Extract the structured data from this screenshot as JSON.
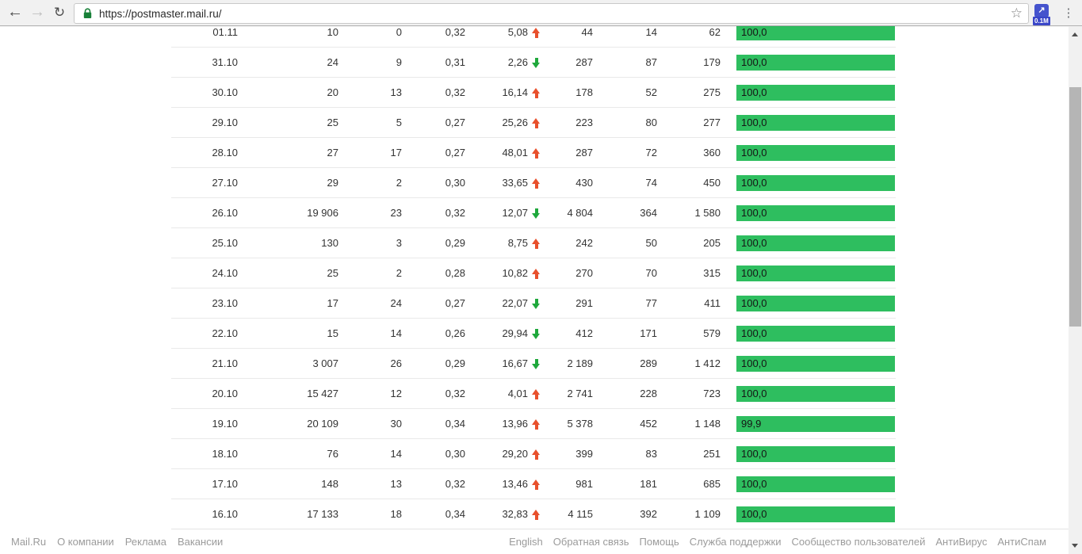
{
  "browser": {
    "url": "https://postmaster.mail.ru/",
    "extension_badge": "0.1M",
    "back_glyph": "←",
    "forward_glyph": "→",
    "reload_glyph": "↻",
    "star_glyph": "☆",
    "extension_glyph": "↗",
    "menu_glyph": "⋮"
  },
  "colors": {
    "bar_green": "#2ebe5f",
    "arrow_up_red": "#e8502c",
    "arrow_down_green": "#1fa83c",
    "lock_green": "#188038"
  },
  "table": {
    "rows": [
      {
        "date": "01.11",
        "v1": "10",
        "v2": "0",
        "v3": "0,32",
        "v4": "5,08",
        "trend": "up",
        "v5": "44",
        "v6": "14",
        "v7": "62",
        "bar": "100,0",
        "bar_pct": 100.0
      },
      {
        "date": "31.10",
        "v1": "24",
        "v2": "9",
        "v3": "0,31",
        "v4": "2,26",
        "trend": "down",
        "v5": "287",
        "v6": "87",
        "v7": "179",
        "bar": "100,0",
        "bar_pct": 100.0
      },
      {
        "date": "30.10",
        "v1": "20",
        "v2": "13",
        "v3": "0,32",
        "v4": "16,14",
        "trend": "up",
        "v5": "178",
        "v6": "52",
        "v7": "275",
        "bar": "100,0",
        "bar_pct": 100.0
      },
      {
        "date": "29.10",
        "v1": "25",
        "v2": "5",
        "v3": "0,27",
        "v4": "25,26",
        "trend": "up",
        "v5": "223",
        "v6": "80",
        "v7": "277",
        "bar": "100,0",
        "bar_pct": 100.0
      },
      {
        "date": "28.10",
        "v1": "27",
        "v2": "17",
        "v3": "0,27",
        "v4": "48,01",
        "trend": "up",
        "v5": "287",
        "v6": "72",
        "v7": "360",
        "bar": "100,0",
        "bar_pct": 100.0
      },
      {
        "date": "27.10",
        "v1": "29",
        "v2": "2",
        "v3": "0,30",
        "v4": "33,65",
        "trend": "up",
        "v5": "430",
        "v6": "74",
        "v7": "450",
        "bar": "100,0",
        "bar_pct": 100.0
      },
      {
        "date": "26.10",
        "v1": "19 906",
        "v2": "23",
        "v3": "0,32",
        "v4": "12,07",
        "trend": "down",
        "v5": "4 804",
        "v6": "364",
        "v7": "1 580",
        "bar": "100,0",
        "bar_pct": 100.0
      },
      {
        "date": "25.10",
        "v1": "130",
        "v2": "3",
        "v3": "0,29",
        "v4": "8,75",
        "trend": "up",
        "v5": "242",
        "v6": "50",
        "v7": "205",
        "bar": "100,0",
        "bar_pct": 100.0
      },
      {
        "date": "24.10",
        "v1": "25",
        "v2": "2",
        "v3": "0,28",
        "v4": "10,82",
        "trend": "up",
        "v5": "270",
        "v6": "70",
        "v7": "315",
        "bar": "100,0",
        "bar_pct": 100.0
      },
      {
        "date": "23.10",
        "v1": "17",
        "v2": "24",
        "v3": "0,27",
        "v4": "22,07",
        "trend": "down",
        "v5": "291",
        "v6": "77",
        "v7": "411",
        "bar": "100,0",
        "bar_pct": 100.0
      },
      {
        "date": "22.10",
        "v1": "15",
        "v2": "14",
        "v3": "0,26",
        "v4": "29,94",
        "trend": "down",
        "v5": "412",
        "v6": "171",
        "v7": "579",
        "bar": "100,0",
        "bar_pct": 100.0
      },
      {
        "date": "21.10",
        "v1": "3 007",
        "v2": "26",
        "v3": "0,29",
        "v4": "16,67",
        "trend": "down",
        "v5": "2 189",
        "v6": "289",
        "v7": "1 412",
        "bar": "100,0",
        "bar_pct": 100.0
      },
      {
        "date": "20.10",
        "v1": "15 427",
        "v2": "12",
        "v3": "0,32",
        "v4": "4,01",
        "trend": "up",
        "v5": "2 741",
        "v6": "228",
        "v7": "723",
        "bar": "100,0",
        "bar_pct": 100.0
      },
      {
        "date": "19.10",
        "v1": "20 109",
        "v2": "30",
        "v3": "0,34",
        "v4": "13,96",
        "trend": "up",
        "v5": "5 378",
        "v6": "452",
        "v7": "1 148",
        "bar": "99,9",
        "bar_pct": 99.9
      },
      {
        "date": "18.10",
        "v1": "76",
        "v2": "14",
        "v3": "0,30",
        "v4": "29,20",
        "trend": "up",
        "v5": "399",
        "v6": "83",
        "v7": "251",
        "bar": "100,0",
        "bar_pct": 100.0
      },
      {
        "date": "17.10",
        "v1": "148",
        "v2": "13",
        "v3": "0,32",
        "v4": "13,46",
        "trend": "up",
        "v5": "981",
        "v6": "181",
        "v7": "685",
        "bar": "100,0",
        "bar_pct": 100.0
      },
      {
        "date": "16.10",
        "v1": "17 133",
        "v2": "18",
        "v3": "0,34",
        "v4": "32,83",
        "trend": "up",
        "v5": "4 115",
        "v6": "392",
        "v7": "1 109",
        "bar": "100,0",
        "bar_pct": 100.0
      }
    ]
  },
  "footer": {
    "left": [
      "Mail.Ru",
      "О компании",
      "Реклама",
      "Вакансии"
    ],
    "right": [
      "English",
      "Обратная связь",
      "Помощь",
      "Служба поддержки",
      "Сообщество пользователей",
      "АнтиВирус",
      "АнтиСпам"
    ]
  }
}
